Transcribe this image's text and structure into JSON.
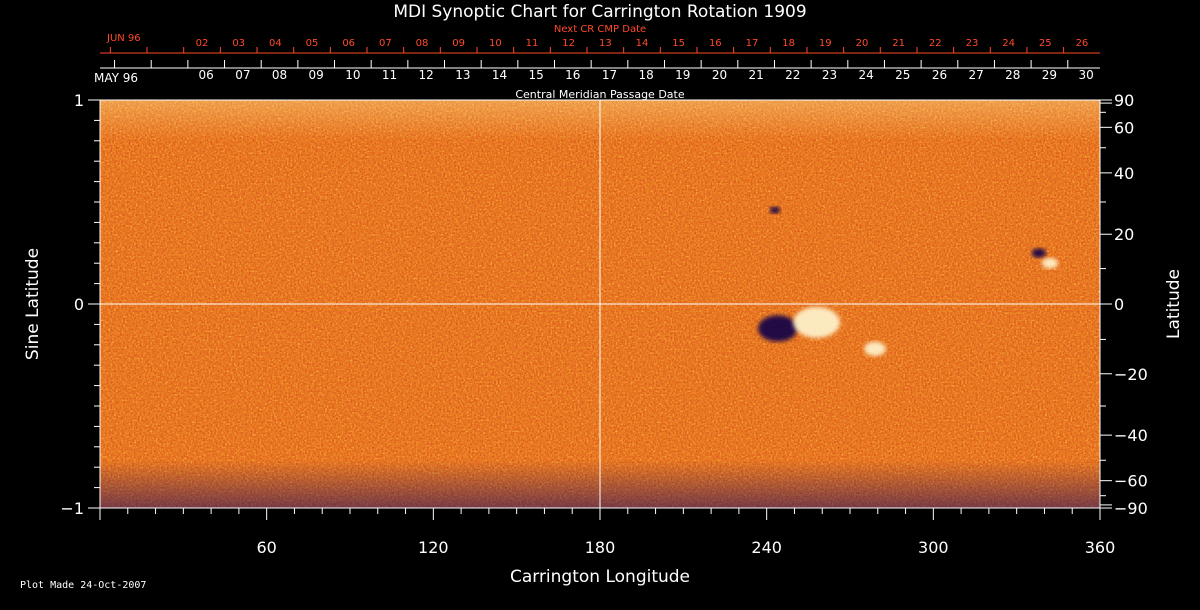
{
  "chart_data": {
    "type": "heatmap",
    "title": "MDI Synoptic Chart for Carrington Rotation 1909",
    "xlabel": "Carrington Longitude",
    "ylabel_left": "Sine Latitude",
    "ylabel_right": "Latitude",
    "xlim": [
      0,
      360
    ],
    "ylim": [
      -1,
      1
    ],
    "x_ticks": [
      60,
      120,
      180,
      240,
      300,
      360
    ],
    "y_ticks_left": [
      {
        "value": 1,
        "label": "1"
      },
      {
        "value": 0,
        "label": "0"
      },
      {
        "value": -1,
        "label": "−1"
      }
    ],
    "y_ticks_right": [
      {
        "deg": 90,
        "label": "90"
      },
      {
        "deg": 60,
        "label": "60"
      },
      {
        "deg": 40,
        "label": "40"
      },
      {
        "deg": 20,
        "label": "20"
      },
      {
        "deg": 0,
        "label": "0"
      },
      {
        "deg": -20,
        "label": "−20"
      },
      {
        "deg": -40,
        "label": "−40"
      },
      {
        "deg": -60,
        "label": "−60"
      },
      {
        "deg": -90,
        "label": "−90"
      }
    ],
    "cmp_axis": {
      "title": "Central Meridian Passage Date",
      "month_label": "MAY 96",
      "dates": [
        "30",
        "29",
        "28",
        "27",
        "26",
        "25",
        "24",
        "23",
        "22",
        "21",
        "20",
        "19",
        "18",
        "17",
        "16",
        "15",
        "14",
        "13",
        "12",
        "11",
        "10",
        "09",
        "08",
        "07",
        "06"
      ],
      "first_date_longitude": 355
    },
    "next_cmp_axis": {
      "title": "Next CR CMP Date",
      "month_label": "JUN 96",
      "dates": [
        "26",
        "25",
        "24",
        "23",
        "22",
        "21",
        "20",
        "19",
        "18",
        "17",
        "16",
        "15",
        "14",
        "13",
        "12",
        "11",
        "10",
        "09",
        "08",
        "07",
        "06",
        "05",
        "04",
        "03",
        "02"
      ],
      "first_date_longitude": 353.5
    },
    "features": [
      {
        "name": "negative polarity region",
        "longitude": 244,
        "sin_lat": -0.12,
        "polarity": "negative"
      },
      {
        "name": "positive polarity region",
        "longitude": 258,
        "sin_lat": -0.09,
        "polarity": "positive"
      },
      {
        "name": "positive trailing spot",
        "longitude": 279,
        "sin_lat": -0.22,
        "polarity": "positive"
      },
      {
        "name": "negative spot north-east",
        "longitude": 338,
        "sin_lat": 0.25,
        "polarity": "negative"
      },
      {
        "name": "positive spot north-east",
        "longitude": 342,
        "sin_lat": 0.2,
        "polarity": "positive"
      },
      {
        "name": "negative spot north",
        "longitude": 243,
        "sin_lat": 0.46,
        "polarity": "negative"
      }
    ],
    "colors": {
      "background_field": "#e8501a",
      "positive": "#fff6d0",
      "negative": "#10004a",
      "grid": "#ffffff",
      "next_axis": "#ff4a2a"
    }
  },
  "footer": "Plot Made 24-Oct-2007"
}
